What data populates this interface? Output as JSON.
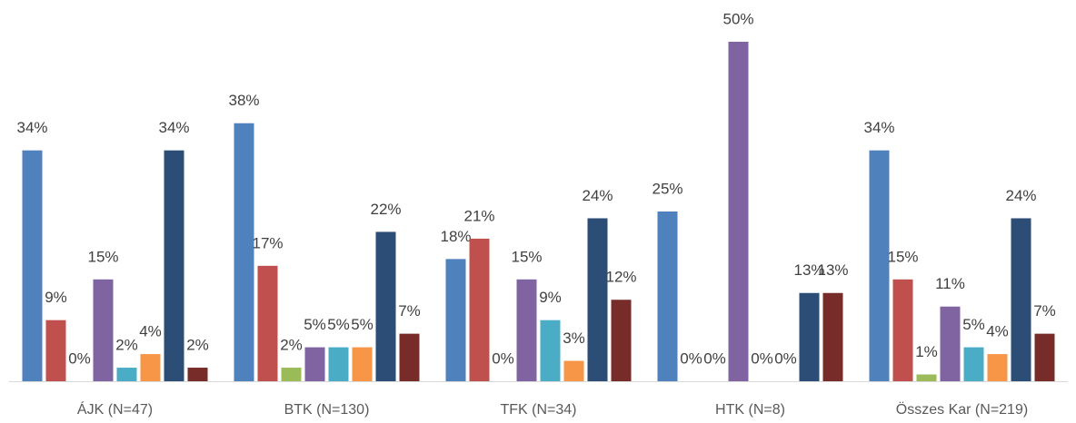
{
  "chart_data": {
    "type": "bar",
    "categories": [
      "ÁJK (N=47)",
      "BTK (N=130)",
      "TFK (N=34)",
      "HTK (N=8)",
      "Összes Kar (N=219)"
    ],
    "series": [
      {
        "color": "#4f81bd",
        "values": [
          34,
          38,
          18,
          25,
          34
        ],
        "value_labels": [
          "34%",
          "38%",
          "18%",
          "25%",
          "34%"
        ]
      },
      {
        "color": "#c0504d",
        "values": [
          9,
          17,
          21,
          0,
          15
        ],
        "value_labels": [
          "9%",
          "17%",
          "21%",
          "0%",
          "15%"
        ]
      },
      {
        "color": "#9bbb59",
        "values": [
          0,
          2,
          0,
          0,
          1
        ],
        "value_labels": [
          "0%",
          "2%",
          "0%",
          "0%",
          "1%"
        ]
      },
      {
        "color": "#8064a2",
        "values": [
          15,
          5,
          15,
          50,
          11
        ],
        "value_labels": [
          "15%",
          "5%",
          "15%",
          "50%",
          "11%"
        ]
      },
      {
        "color": "#4bacc6",
        "values": [
          2,
          5,
          9,
          0,
          5
        ],
        "value_labels": [
          "2%",
          "5%",
          "9%",
          "0%",
          "5%"
        ]
      },
      {
        "color": "#f79646",
        "values": [
          4,
          5,
          3,
          0,
          4
        ],
        "value_labels": [
          "4%",
          "5%",
          "3%",
          "0%",
          "4%"
        ]
      },
      {
        "color": "#2c4d75",
        "values": [
          34,
          22,
          24,
          13,
          24
        ],
        "value_labels": [
          "34%",
          "22%",
          "24%",
          "13%",
          "24%"
        ]
      },
      {
        "color": "#772c2a",
        "values": [
          2,
          7,
          12,
          13,
          7
        ],
        "value_labels": [
          "2%",
          "7%",
          "12%",
          "13%",
          "7%"
        ]
      }
    ]
  }
}
